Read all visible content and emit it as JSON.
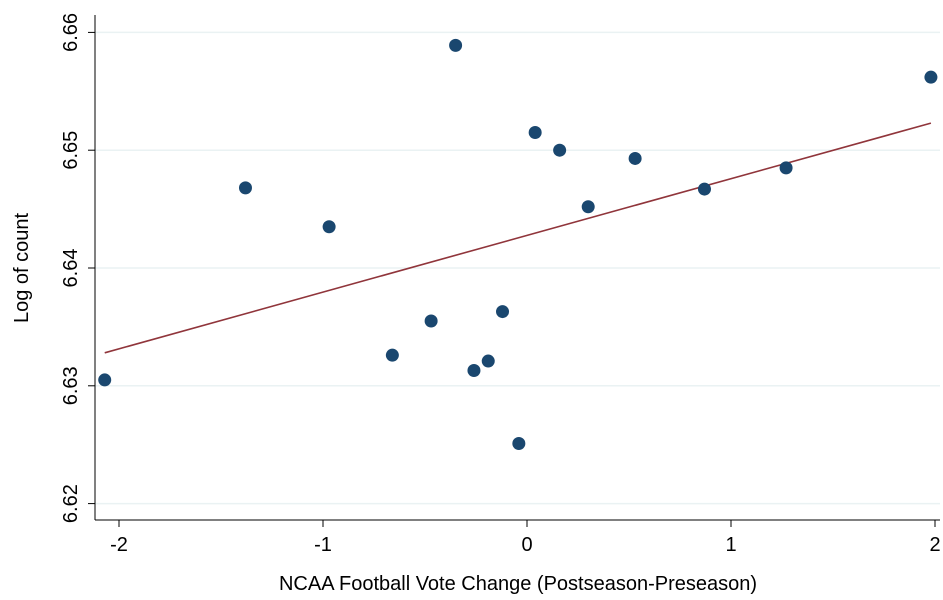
{
  "chart_data": {
    "type": "scatter",
    "title": "",
    "xlabel": "NCAA Football Vote Change (Postseason-Preseason)",
    "ylabel": "Log of count",
    "xlim": [
      -2.1,
      2.0
    ],
    "ylim": [
      6.618,
      6.661
    ],
    "xticks": [
      -2,
      -1,
      0,
      1,
      2
    ],
    "xtick_labels": [
      "-2",
      "-1",
      "0",
      "1",
      "2"
    ],
    "yticks": [
      6.62,
      6.63,
      6.64,
      6.65,
      6.66
    ],
    "ytick_labels": [
      "6.62",
      "6.63",
      "6.64",
      "6.65",
      "6.66"
    ],
    "grid": "horizontal",
    "series": [
      {
        "type": "scatter",
        "color": "#1a476f",
        "points": [
          {
            "x": -2.07,
            "y": 6.6305
          },
          {
            "x": -1.38,
            "y": 6.6468
          },
          {
            "x": -0.97,
            "y": 6.6435
          },
          {
            "x": -0.66,
            "y": 6.6326
          },
          {
            "x": -0.47,
            "y": 6.6355
          },
          {
            "x": -0.35,
            "y": 6.6589
          },
          {
            "x": -0.26,
            "y": 6.6313
          },
          {
            "x": -0.19,
            "y": 6.6321
          },
          {
            "x": -0.12,
            "y": 6.6363
          },
          {
            "x": -0.04,
            "y": 6.6251
          },
          {
            "x": 0.04,
            "y": 6.6515
          },
          {
            "x": 0.16,
            "y": 6.65
          },
          {
            "x": 0.3,
            "y": 6.6452
          },
          {
            "x": 0.53,
            "y": 6.6493
          },
          {
            "x": 0.87,
            "y": 6.6467
          },
          {
            "x": 1.27,
            "y": 6.6485
          },
          {
            "x": 1.98,
            "y": 6.6562
          }
        ]
      },
      {
        "type": "line",
        "color": "#90353b",
        "points": [
          {
            "x": -2.07,
            "y": 6.6328
          },
          {
            "x": 1.98,
            "y": 6.6523
          }
        ]
      }
    ]
  }
}
